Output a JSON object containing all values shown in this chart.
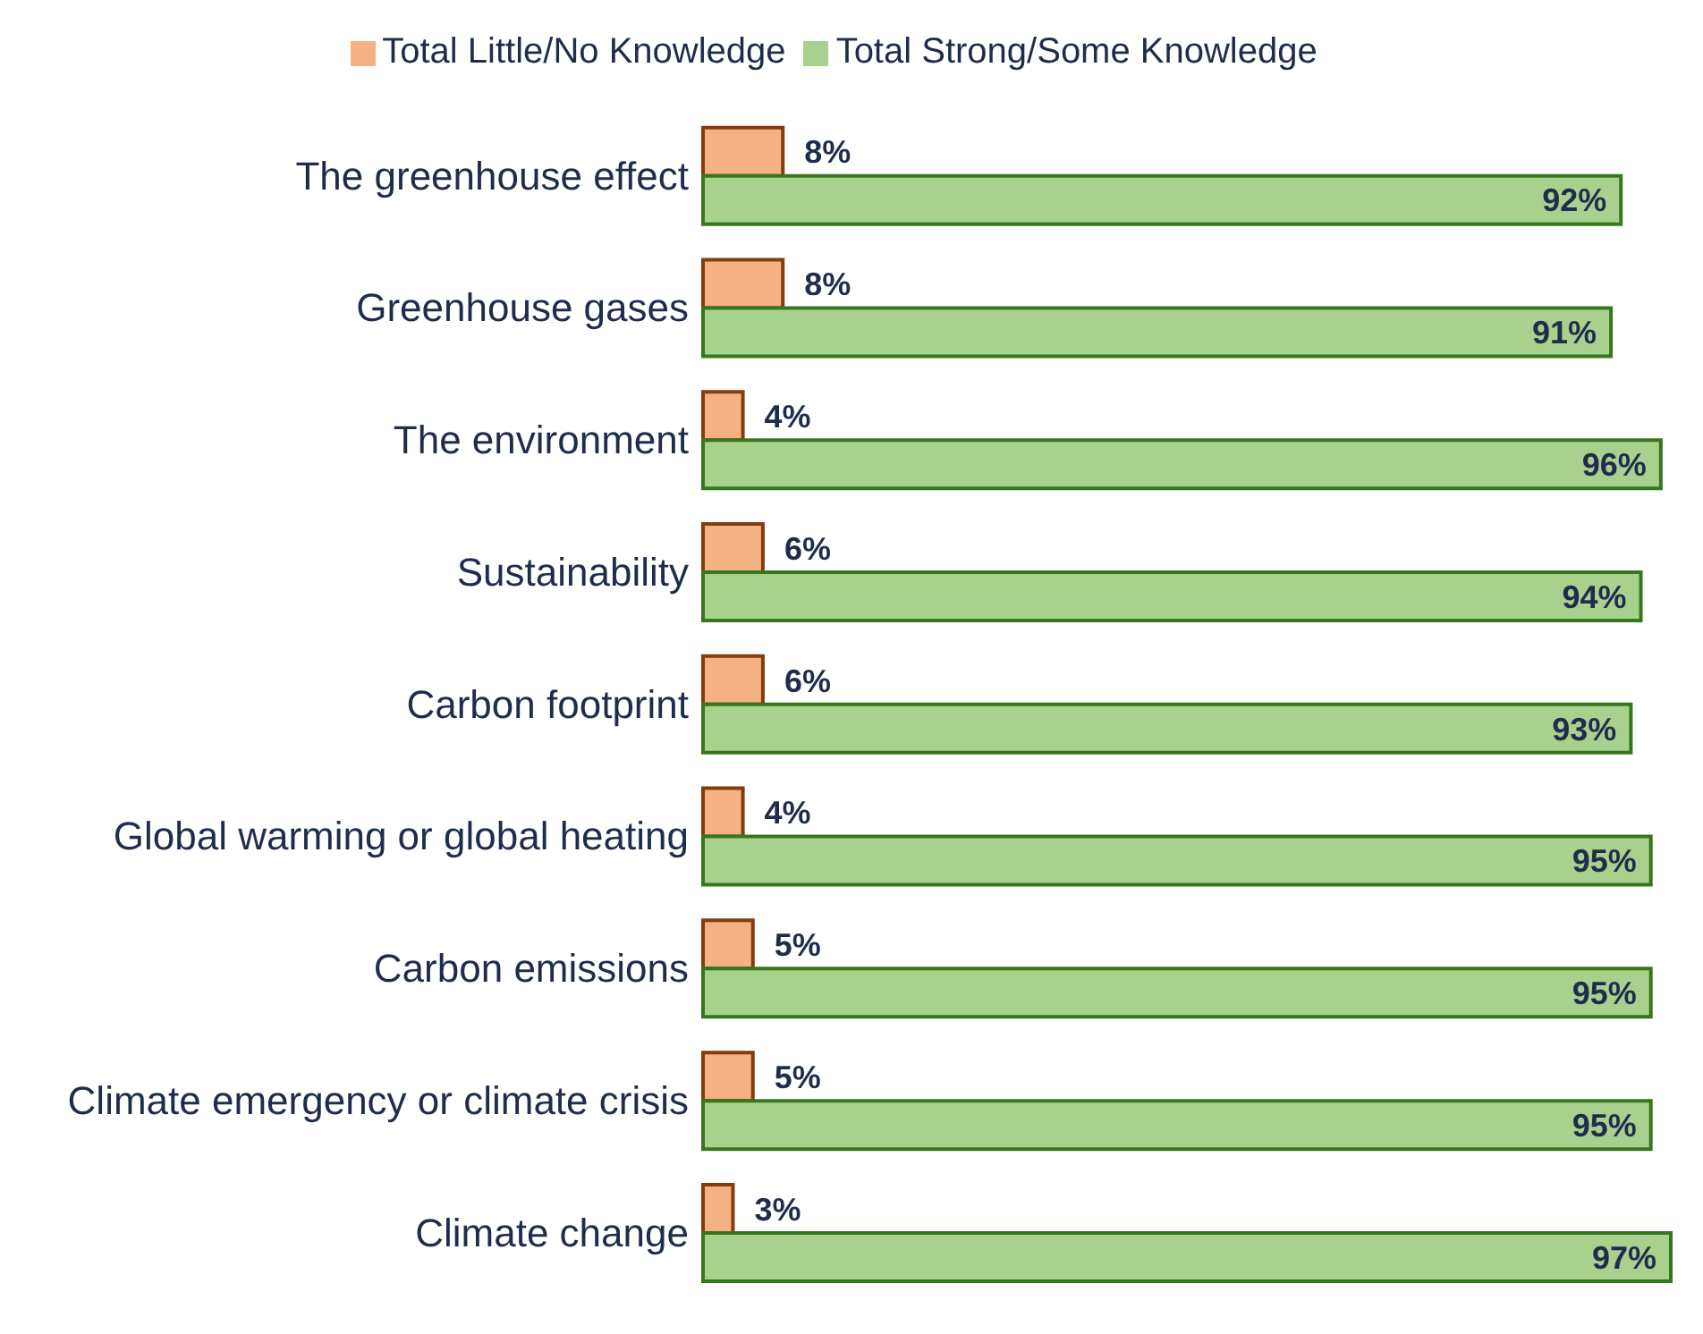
{
  "chart_data": {
    "type": "bar",
    "orientation": "horizontal",
    "legend": "top",
    "grid": false,
    "categories": [
      "The greenhouse effect",
      "Greenhouse gases",
      "The environment",
      "Sustainability",
      "Carbon footprint",
      "Global warming or global heating",
      "Carbon emissions",
      "Climate emergency or climate crisis",
      "Climate change"
    ],
    "series": [
      {
        "name": "Total Little/No Knowledge",
        "color": "#f4b183",
        "values": [
          8,
          8,
          4,
          6,
          6,
          4,
          5,
          5,
          3
        ],
        "value_labels": [
          "8%",
          "8%",
          "4%",
          "6%",
          "6%",
          "4%",
          "5%",
          "5%",
          "3%"
        ]
      },
      {
        "name": "Total Strong/Some Knowledge",
        "color": "#a9d18e",
        "values": [
          92,
          91,
          96,
          94,
          93,
          95,
          95,
          95,
          97
        ],
        "value_labels": [
          "92%",
          "91%",
          "96%",
          "94%",
          "93%",
          "95%",
          "95%",
          "95%",
          "97%"
        ]
      }
    ]
  }
}
